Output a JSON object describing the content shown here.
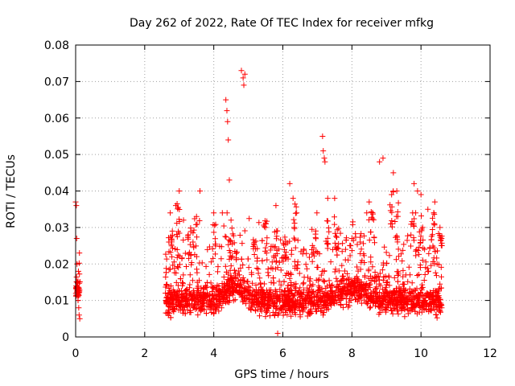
{
  "chart_data": {
    "type": "scatter",
    "title": "Day 262 of 2022, Rate Of TEC Index for receiver mfkg",
    "xlabel": "GPS time / hours",
    "ylabel": "ROTI / TECUs",
    "xlim": [
      0,
      12
    ],
    "ylim": [
      0,
      0.08
    ],
    "x_ticks": [
      "0",
      "2",
      "4",
      "6",
      "8",
      "10",
      "12"
    ],
    "y_ticks": [
      "0",
      "0.01",
      "0.02",
      "0.03",
      "0.04",
      "0.05",
      "0.06",
      "0.07",
      "0.08"
    ],
    "grid": true,
    "marker": "+",
    "color": "#ff0000",
    "series": [
      {
        "points": [
          [
            0.0,
            0.037
          ],
          [
            0.02,
            0.036
          ],
          [
            0.03,
            0.027
          ],
          [
            0.04,
            0.02
          ],
          [
            0.05,
            0.015
          ],
          [
            0.06,
            0.012
          ],
          [
            0.07,
            0.01
          ],
          [
            0.08,
            0.018
          ],
          [
            0.09,
            0.008
          ],
          [
            0.1,
            0.006
          ],
          [
            0.11,
            0.023
          ],
          [
            0.12,
            0.005
          ],
          [
            2.6,
            0.012
          ],
          [
            2.7,
            0.026
          ],
          [
            2.8,
            0.029
          ],
          [
            2.9,
            0.036
          ],
          [
            3.0,
            0.04
          ],
          [
            3.5,
            0.033
          ],
          [
            3.6,
            0.04
          ],
          [
            4.0,
            0.034
          ],
          [
            4.35,
            0.065
          ],
          [
            4.38,
            0.062
          ],
          [
            4.4,
            0.059
          ],
          [
            4.42,
            0.054
          ],
          [
            4.45,
            0.043
          ],
          [
            4.5,
            0.032
          ],
          [
            4.8,
            0.073
          ],
          [
            4.85,
            0.071
          ],
          [
            4.87,
            0.069
          ],
          [
            4.9,
            0.072
          ],
          [
            5.5,
            0.03
          ],
          [
            5.8,
            0.036
          ],
          [
            5.85,
            0.001
          ],
          [
            6.2,
            0.042
          ],
          [
            6.4,
            0.034
          ],
          [
            7.15,
            0.055
          ],
          [
            7.17,
            0.051
          ],
          [
            7.2,
            0.049
          ],
          [
            7.22,
            0.048
          ],
          [
            7.3,
            0.038
          ],
          [
            7.5,
            0.038
          ],
          [
            8.0,
            0.027
          ],
          [
            8.5,
            0.037
          ],
          [
            8.8,
            0.048
          ],
          [
            8.9,
            0.049
          ],
          [
            9.2,
            0.045
          ],
          [
            9.3,
            0.04
          ],
          [
            9.8,
            0.042
          ],
          [
            9.9,
            0.04
          ],
          [
            10.0,
            0.039
          ],
          [
            10.2,
            0.035
          ],
          [
            10.4,
            0.037
          ],
          [
            10.55,
            0.03
          ],
          [
            10.6,
            0.008
          ]
        ]
      }
    ]
  }
}
